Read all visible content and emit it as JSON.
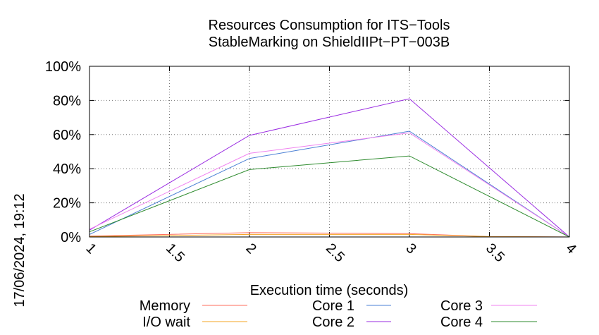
{
  "chart_data": {
    "type": "line",
    "title": "Resources Consumption for ITS−Tools",
    "subtitle": "StableMarking on ShieldIIPt−PT−003B",
    "xlabel": "Execution time (seconds)",
    "ylabel": "",
    "timestamp": "17/06/2024, 19:12",
    "xlim": [
      1,
      4
    ],
    "ylim": [
      0,
      100
    ],
    "x_ticks": [
      1,
      1.5,
      2,
      2.5,
      3,
      3.5,
      4
    ],
    "x_tick_labels": [
      "1",
      "1.5",
      "2",
      "2.5",
      "3",
      "3.5",
      "4"
    ],
    "y_ticks": [
      0,
      20,
      40,
      60,
      80,
      100
    ],
    "y_tick_labels": [
      "0%",
      "20%",
      "40%",
      "60%",
      "80%",
      "100%"
    ],
    "grid": true,
    "legend_position": "bottom",
    "series": [
      {
        "name": "Memory",
        "color": "#ff6b5b",
        "x": [
          1,
          2,
          3,
          3.5,
          4
        ],
        "values": [
          0.5,
          2.5,
          2.0,
          0.2,
          0
        ]
      },
      {
        "name": "I/O wait",
        "color": "#f5a623",
        "x": [
          1,
          2,
          3,
          3.5,
          4
        ],
        "values": [
          0.2,
          1.5,
          1.5,
          0.2,
          0
        ]
      },
      {
        "name": "Core 1",
        "color": "#4a7fd4",
        "x": [
          1,
          2,
          3,
          4
        ],
        "values": [
          1.5,
          46,
          62,
          0
        ]
      },
      {
        "name": "Core 2",
        "color": "#9a2be2",
        "x": [
          1,
          2,
          3,
          4
        ],
        "values": [
          4,
          59.5,
          81,
          0
        ]
      },
      {
        "name": "Core 3",
        "color": "#f082f0",
        "x": [
          1,
          2,
          3,
          4
        ],
        "values": [
          4.5,
          49,
          61,
          0
        ]
      },
      {
        "name": "Core 4",
        "color": "#2e8b2e",
        "x": [
          1,
          2,
          3,
          4
        ],
        "values": [
          3,
          39.5,
          47.5,
          0
        ]
      }
    ]
  }
}
